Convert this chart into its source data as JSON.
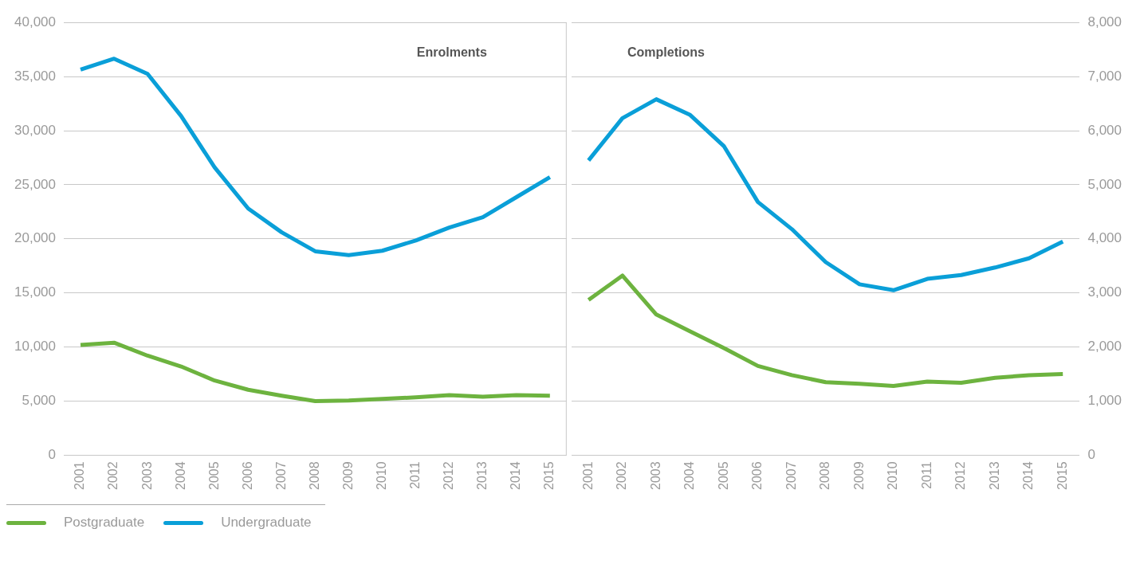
{
  "chart_data": [
    {
      "type": "line",
      "title": "Enrolments",
      "categories": [
        "2001",
        "2002",
        "2003",
        "2004",
        "2005",
        "2006",
        "2007",
        "2008",
        "2009",
        "2010",
        "2011",
        "2012",
        "2013",
        "2014",
        "2015"
      ],
      "series": [
        {
          "name": "Postgraduate",
          "color": "#6db33f",
          "values": [
            10200,
            10400,
            9200,
            8200,
            6900,
            6050,
            5500,
            5000,
            5050,
            5200,
            5350,
            5550,
            5400,
            5550,
            5500
          ]
        },
        {
          "name": "Undergraduate",
          "color": "#0a9fd8",
          "values": [
            35650,
            36650,
            35250,
            31350,
            26600,
            22800,
            20600,
            18850,
            18500,
            18900,
            19850,
            21050,
            22000,
            23850,
            25700
          ]
        }
      ],
      "ylim": [
        0,
        40000
      ],
      "yticks": [
        0,
        {
          "value": 5000,
          "label": "5,000"
        },
        {
          "value": 10000,
          "label": "10,000"
        },
        {
          "value": 15000,
          "label": "15,000"
        },
        {
          "value": 20000,
          "label": "20,000"
        },
        {
          "value": 25000,
          "label": "25,000"
        },
        {
          "value": 30000,
          "label": "30,000"
        },
        {
          "value": 35000,
          "label": "35,000"
        },
        {
          "value": 40000,
          "label": "40,000"
        }
      ],
      "grid": "y",
      "legend": "bottom left",
      "marker": "none",
      "line_style": "solid"
    },
    {
      "type": "line",
      "title": "Completions",
      "categories": [
        "2001",
        "2002",
        "2003",
        "2004",
        "2005",
        "2006",
        "2007",
        "2008",
        "2009",
        "2010",
        "2011",
        "2012",
        "2013",
        "2014",
        "2015"
      ],
      "series": [
        {
          "color": "#6db33f",
          "axis": "y2",
          "values": [
            2870,
            3320,
            2600,
            2290,
            1980,
            1650,
            1480,
            1350,
            1320,
            1280,
            1360,
            1340,
            1430,
            1480,
            1500
          ]
        },
        {
          "color": "#0a9fd8",
          "axis": "y2",
          "values": [
            5450,
            6230,
            6580,
            6290,
            5710,
            4680,
            4180,
            3570,
            3160,
            3050,
            3260,
            3330,
            3470,
            3640,
            3950
          ]
        }
      ],
      "y2lim": [
        0,
        8000
      ],
      "y2ticks": [
        0,
        {
          "value": 1000,
          "label": "1,000"
        },
        {
          "value": 2000,
          "label": "2,000"
        },
        {
          "value": 3000,
          "label": "3,000"
        },
        {
          "value": 4000,
          "label": "4,000"
        },
        {
          "value": 5000,
          "label": "5,000"
        },
        {
          "value": 6000,
          "label": "6,000"
        },
        {
          "value": 7000,
          "label": "7,000"
        },
        {
          "value": 8000,
          "label": "8,000"
        }
      ],
      "grid": "y",
      "legend": false,
      "marker": "none",
      "line_style": "solid"
    }
  ]
}
